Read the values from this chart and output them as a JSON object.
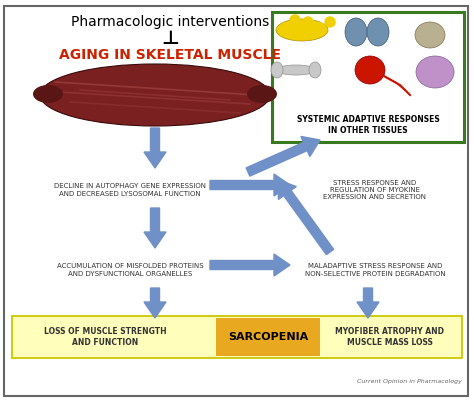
{
  "title": "Pharmacologic interventions",
  "aging_label": "AGING IN SKELETAL MUSCLE",
  "inhibit_symbol": "⊥",
  "box_systemic_title": "SYSTEMIC ADAPTIVE RESPONSES\nIN OTHER TISSUES",
  "text_decline": "DECLINE IN AUTOPHAGY GENE EXPRESSION\nAND DECREASED LYSOSOMAL FUNCTION",
  "text_stress1": "STRESS RESPONSE AND\nREGULATION OF MYOKINE\nEXPRESSION AND SECRETION",
  "text_accum": "ACCUMULATION OF MISFOLDED PROTEINS\nAND DYSFUNCTIONAL ORGANELLES",
  "text_maladaptive": "MALADAPTIVE STRESS RESPONSE AND\nNON-SELECTIVE PROTEIN DEGRADATION",
  "text_loss": "LOSS OF MUSCLE STRENGTH\nAND FUNCTION",
  "text_sarcopenia": "SARCOPENIA",
  "text_myofiber": "MYOFIBER ATROPHY AND\nMUSCLE MASS LOSS",
  "text_credit": "Current Opinion in Pharmacology",
  "bg_color": "#ffffff",
  "figure_bg": "#ffffff",
  "arrow_color": "#7090c8",
  "aging_color": "#cc2200",
  "box_systemic_color": "#3a7a1e",
  "bottom_box_color": "#ffffbb",
  "bottom_box_border": "#c8c800",
  "sarcopenia_bg": "#e8a820",
  "border_color": "#666666",
  "muscle_color": "#7a2020",
  "muscle_highlight": "#b05050"
}
